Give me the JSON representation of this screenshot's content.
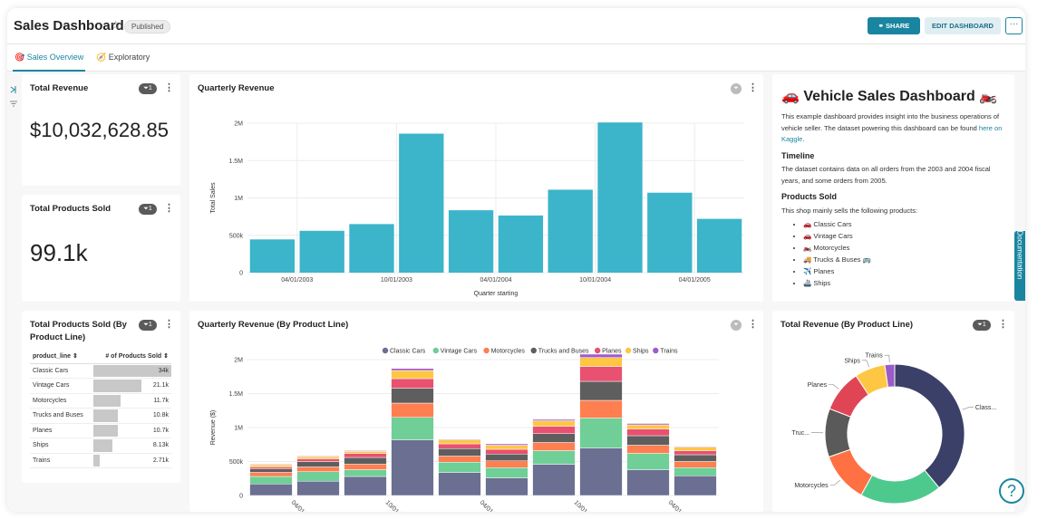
{
  "header": {
    "title": "Sales Dashboard",
    "status": "Published",
    "share_label": "SHARE",
    "edit_label": "EDIT DASHBOARD",
    "more_label": "···"
  },
  "tabs": [
    {
      "label": "Sales Overview",
      "icon": "🎯"
    },
    {
      "label": "Exploratory",
      "icon": "🧭"
    }
  ],
  "total_revenue": {
    "title": "Total Revenue",
    "value": "$10,032,628.85",
    "filter_count": "1"
  },
  "total_products_sold": {
    "title": "Total Products Sold",
    "value": "99.1k",
    "filter_count": "1"
  },
  "by_product_line_table": {
    "title": "Total Products Sold (By Product Line)",
    "filter_count": "1",
    "col1": "product_line ⇕",
    "col2": "# of Products Sold ⇕",
    "rows": [
      {
        "label": "Classic Cars",
        "value": "34k",
        "raw": 34
      },
      {
        "label": "Vintage Cars",
        "value": "21.1k",
        "raw": 21.1
      },
      {
        "label": "Motorcycles",
        "value": "11.7k",
        "raw": 11.7
      },
      {
        "label": "Trucks and Buses",
        "value": "10.8k",
        "raw": 10.8
      },
      {
        "label": "Planes",
        "value": "10.7k",
        "raw": 10.7
      },
      {
        "label": "Ships",
        "value": "8.13k",
        "raw": 8.13
      },
      {
        "label": "Trains",
        "value": "2.71k",
        "raw": 2.71
      }
    ]
  },
  "documentation": {
    "heading": "Vehicle Sales Dashboard",
    "heading_icon_left": "🚗",
    "heading_icon_right": "🏍️",
    "intro": "This example dashboard provides insight into the business operations of vehicle seller. The dataset powering this dashboard can be found ",
    "link_text": "here on Kaggle",
    "intro_end": ".",
    "timeline_heading": "Timeline",
    "timeline_text": "The dataset contains data on all orders from the 2003 and 2004 fiscal years, and some orders from 2005.",
    "products_heading": "Products Sold",
    "products_text": "This shop mainly sells the following products:",
    "products": [
      "🚗 Classic Cars",
      "🚗 Vintage Cars",
      "🏍️ Motorcycles",
      "🚚 Trucks & Buses 🚌",
      "✈️ Planes",
      "🚢 Ships"
    ],
    "side_tab": "Documentation"
  },
  "chart_data": [
    {
      "type": "bar",
      "title": "Quarterly Revenue",
      "xlabel": "Quarter starting",
      "ylabel": "Total Sales",
      "ylim": [
        0,
        2000000
      ],
      "yticks": [
        "0",
        "500k",
        "1M",
        "1.5M",
        "2M"
      ],
      "xtick_labels": [
        "04/01/2003",
        "10/01/2003",
        "04/01/2004",
        "10/01/2004",
        "04/01/2005"
      ],
      "categories": [
        "2003-01",
        "2003-04",
        "2003-07",
        "2003-10",
        "2004-01",
        "2004-04",
        "2004-07",
        "2004-10",
        "2005-01",
        "2005-04"
      ],
      "values": [
        445000,
        560000,
        650000,
        1860000,
        835000,
        765000,
        1110000,
        2010000,
        1070000,
        720000
      ],
      "color": "#3cb4ca"
    },
    {
      "type": "bar",
      "title": "Quarterly Revenue (By Product Line)",
      "xlabel": "",
      "ylabel": "Revenue ($)",
      "ylim": [
        0,
        2000000
      ],
      "yticks": [
        "0",
        "500k",
        "1M",
        "1.5M",
        "2M"
      ],
      "xtick_labels": [
        "04/01/2003",
        "10/01/2003",
        "04/01/2004",
        "10/01/2004",
        "04/01/2005"
      ],
      "categories": [
        "2003-01",
        "2003-04",
        "2003-07",
        "2003-10",
        "2004-01",
        "2004-04",
        "2004-07",
        "2004-10",
        "2005-01",
        "2005-04"
      ],
      "series": [
        {
          "name": "Classic Cars",
          "color": "#6b6f91",
          "values": [
            170000,
            210000,
            280000,
            820000,
            340000,
            260000,
            460000,
            700000,
            380000,
            290000
          ]
        },
        {
          "name": "Vintage Cars",
          "color": "#6fcf97",
          "values": [
            110000,
            140000,
            100000,
            330000,
            150000,
            150000,
            200000,
            440000,
            240000,
            120000
          ]
        },
        {
          "name": "Motorcycles",
          "color": "#ff7f50",
          "values": [
            60000,
            70000,
            80000,
            210000,
            90000,
            100000,
            120000,
            260000,
            120000,
            90000
          ]
        },
        {
          "name": "Trucks and Buses",
          "color": "#5e5e5e",
          "values": [
            50000,
            80000,
            100000,
            220000,
            110000,
            100000,
            130000,
            280000,
            140000,
            100000
          ]
        },
        {
          "name": "Planes",
          "color": "#e8516f",
          "values": [
            30000,
            40000,
            60000,
            140000,
            70000,
            70000,
            110000,
            220000,
            100000,
            60000
          ]
        },
        {
          "name": "Ships",
          "color": "#fdc743",
          "values": [
            30000,
            30000,
            30000,
            120000,
            60000,
            60000,
            80000,
            130000,
            60000,
            50000
          ]
        },
        {
          "name": "Trains",
          "color": "#a35ac9",
          "values": [
            10000,
            10000,
            10000,
            30000,
            10000,
            20000,
            20000,
            50000,
            20000,
            10000
          ]
        }
      ]
    },
    {
      "type": "pie",
      "title": "Total Revenue (By Product Line)",
      "filter_count": "1",
      "categories": [
        "Classic Cars",
        "Vintage Cars",
        "Motorcycles",
        "Trucks and Buses",
        "Planes",
        "Ships",
        "Trains"
      ],
      "slice_labels": [
        "Class...",
        "",
        "Motorcycles",
        "Truc...",
        "Planes",
        "Ships",
        "Trains"
      ],
      "values": [
        3920000,
        1900000,
        1170000,
        1130000,
        980000,
        710000,
        230000
      ],
      "colors": [
        "#3a4068",
        "#4ec98e",
        "#ff7043",
        "#5a5a5a",
        "#e04556",
        "#fdc743",
        "#9a5cc6"
      ]
    }
  ]
}
